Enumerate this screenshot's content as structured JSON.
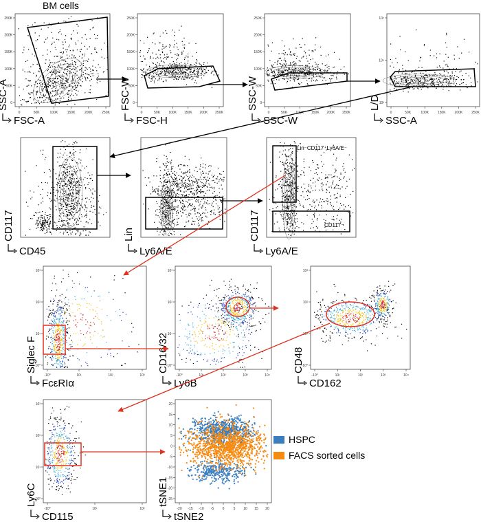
{
  "figure_title": "BM cells",
  "gates": {
    "lin_neg_cd117_pos_ly6a_neg": "Lin⁻CD117⁺Ly6A/E⁻",
    "cd117_neg": "CD117⁻"
  },
  "panels": [
    {
      "id": "p1",
      "xlabel": "FSC-A",
      "ylabel": "SSC-A",
      "kind": "flow-contour",
      "xticks": [
        "0",
        "50K",
        "100K",
        "150K",
        "200K",
        "250K"
      ],
      "yticks": [
        "0",
        "50K",
        "100K",
        "150K",
        "200K",
        "250K"
      ]
    },
    {
      "id": "p2",
      "xlabel": "FSC-H",
      "ylabel": "FSC-W",
      "kind": "flow-contour",
      "xticks": [
        "0",
        "50K",
        "100K",
        "150K",
        "200K",
        "250K"
      ],
      "yticks": [
        "0",
        "50K",
        "100K",
        "150K",
        "200K",
        "250K"
      ]
    },
    {
      "id": "p3",
      "xlabel": "SSC-W",
      "ylabel": "SSC-W",
      "kind": "flow-contour",
      "xticks": [
        "0",
        "50K",
        "100K",
        "150K",
        "200K",
        "250K"
      ],
      "yticks": [
        "0",
        "50K",
        "100K",
        "150K",
        "200K",
        "250K"
      ]
    },
    {
      "id": "p4",
      "xlabel": "SSC-A",
      "ylabel": "L/D",
      "kind": "flow-contour",
      "xticks": [
        "0",
        "50K",
        "100K",
        "150K",
        "200K",
        "250K"
      ],
      "yticks": [
        "10³",
        "10⁴",
        "10⁵"
      ]
    },
    {
      "id": "p5",
      "xlabel": "CD45",
      "ylabel": "CD117",
      "kind": "flow-contour"
    },
    {
      "id": "p6",
      "xlabel": "Ly6A/E",
      "ylabel": "Lin",
      "kind": "flow-contour"
    },
    {
      "id": "p7",
      "xlabel": "Ly6A/E",
      "ylabel": "CD117",
      "kind": "flow-contour"
    },
    {
      "id": "p8",
      "xlabel": "FcεRIα",
      "ylabel": "Siglec F",
      "kind": "flow-density",
      "xticks": [
        "-10⁰",
        "10¹",
        "10²",
        "10³"
      ],
      "yticks": [
        "-10⁰",
        "10¹",
        "10²",
        "10³"
      ]
    },
    {
      "id": "p9",
      "xlabel": "Ly6B",
      "ylabel": "CD16/32",
      "kind": "flow-density",
      "xticks": [
        "-10⁰",
        "10¹",
        "10²",
        "10³",
        "10⁴"
      ],
      "yticks": [
        "-10⁰",
        "10¹",
        "10²",
        "10³"
      ]
    },
    {
      "id": "p10",
      "xlabel": "CD162",
      "ylabel": "CD48",
      "kind": "flow-density",
      "xticks": [
        "-10⁰",
        "10¹",
        "10²",
        "10³",
        "10⁴"
      ],
      "yticks": [
        "-10⁰",
        "10¹",
        "10²",
        "10³"
      ]
    },
    {
      "id": "p11",
      "xlabel": "CD115",
      "ylabel": "Ly6C",
      "kind": "flow-density",
      "xticks": [
        "-10⁰",
        "10¹",
        "10²"
      ],
      "yticks": [
        "-10⁰",
        "10¹",
        "10²",
        "10³"
      ]
    },
    {
      "id": "p12",
      "xlabel": "tSNE2",
      "ylabel": "tSNE1",
      "kind": "tsne",
      "xticks": [
        "-20",
        "-15",
        "-10",
        "-5",
        "0",
        "5",
        "10",
        "15",
        "20"
      ],
      "yticks": [
        "-25",
        "-20",
        "-15",
        "-10",
        "-5",
        "0",
        "5",
        "10",
        "15",
        "20"
      ]
    }
  ],
  "legend": [
    {
      "label": "HSPC",
      "color": "#3a7ebf"
    },
    {
      "label": "FACS sorted cells",
      "color": "#f68b14"
    }
  ],
  "colors": {
    "gate_black": "#000000",
    "gate_red": "#e0301e",
    "arrow_black": "#000000",
    "arrow_red": "#e0301e"
  }
}
